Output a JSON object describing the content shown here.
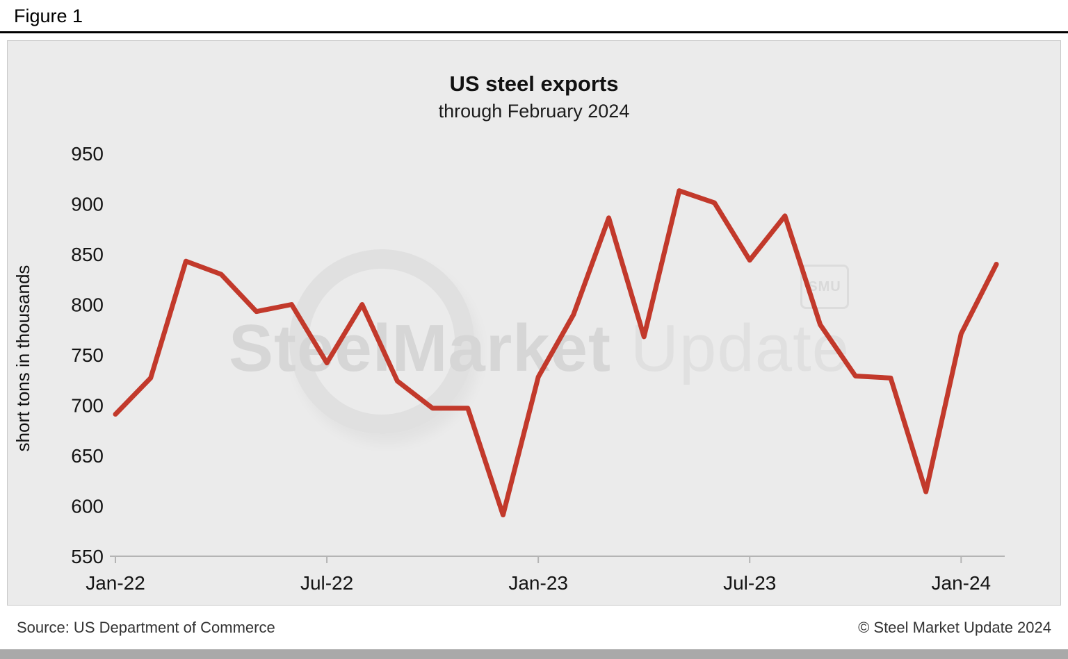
{
  "figure_label": "Figure 1",
  "chart_data": {
    "type": "line",
    "title": "US steel exports",
    "subtitle": "through February 2024",
    "ylabel": "short tons in thousands",
    "x": [
      "Jan-22",
      "Feb-22",
      "Mar-22",
      "Apr-22",
      "May-22",
      "Jun-22",
      "Jul-22",
      "Aug-22",
      "Sep-22",
      "Oct-22",
      "Nov-22",
      "Dec-22",
      "Jan-23",
      "Feb-23",
      "Mar-23",
      "Apr-23",
      "May-23",
      "Jun-23",
      "Jul-23",
      "Aug-23",
      "Sep-23",
      "Oct-23",
      "Nov-23",
      "Dec-23",
      "Jan-24",
      "Feb-24"
    ],
    "values": [
      691,
      727,
      843,
      830,
      793,
      800,
      742,
      800,
      724,
      697,
      697,
      591,
      728,
      790,
      886,
      768,
      913,
      901,
      844,
      888,
      780,
      729,
      727,
      614,
      771,
      840
    ],
    "ylim": [
      550,
      950
    ],
    "yticks": [
      550,
      600,
      650,
      700,
      750,
      800,
      850,
      900,
      950
    ],
    "xticks": [
      {
        "label": "Jan-22",
        "index": 0
      },
      {
        "label": "Jul-22",
        "index": 6
      },
      {
        "label": "Jan-23",
        "index": 12
      },
      {
        "label": "Jul-23",
        "index": 18
      },
      {
        "label": "Jan-24",
        "index": 24
      }
    ],
    "line_color": "#c2392b",
    "grid": false,
    "legend": false
  },
  "watermark": {
    "part1": "SteelMarket",
    "part2": " Update",
    "badge": "SMU"
  },
  "footer": {
    "source": "Source: US Department of Commerce",
    "copyright": "© Steel Market Update 2024"
  }
}
